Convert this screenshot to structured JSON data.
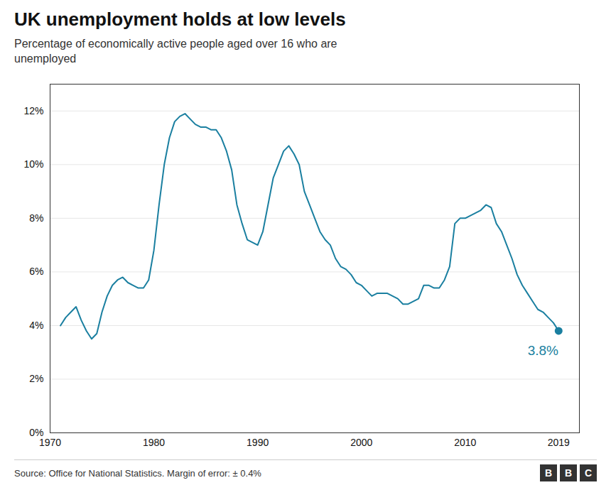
{
  "chart_data": {
    "type": "line",
    "title": "UK unemployment holds at low levels",
    "subtitle": "Percentage of economically active people aged over 16 who are\nunemployed",
    "source": "Source: Office for National Statistics. Margin of error: ± 0.4%",
    "logo": "BBC",
    "annotations": [
      {
        "text": "3.8%",
        "x": 2019,
        "y": 3.8
      }
    ],
    "color": "#1a7fa0",
    "grid": "y",
    "xlim": [
      1970,
      2021
    ],
    "xticks": [
      1970,
      1980,
      1990,
      2000,
      2010,
      2019
    ],
    "ylim": [
      0,
      13
    ],
    "yticks": [
      {
        "value": 0,
        "label": "0%"
      },
      {
        "value": 2,
        "label": "2%"
      },
      {
        "value": 4,
        "label": "4%"
      },
      {
        "value": 6,
        "label": "6%"
      },
      {
        "value": 8,
        "label": "8%"
      },
      {
        "value": 10,
        "label": "10%"
      },
      {
        "value": 12,
        "label": "12%"
      }
    ],
    "x": [
      1971,
      1971.5,
      1972,
      1972.5,
      1973,
      1973.5,
      1974,
      1974.5,
      1975,
      1975.5,
      1976,
      1976.5,
      1977,
      1977.5,
      1978,
      1978.5,
      1979,
      1979.5,
      1980,
      1980.5,
      1981,
      1981.5,
      1982,
      1982.5,
      1983,
      1983.5,
      1984,
      1984.5,
      1985,
      1985.5,
      1986,
      1986.5,
      1987,
      1987.5,
      1988,
      1988.5,
      1989,
      1989.5,
      1990,
      1990.5,
      1991,
      1991.5,
      1992,
      1992.5,
      1993,
      1993.5,
      1994,
      1994.5,
      1995,
      1995.5,
      1996,
      1996.5,
      1997,
      1997.5,
      1998,
      1998.5,
      1999,
      1999.5,
      2000,
      2000.5,
      2001,
      2001.5,
      2002,
      2002.5,
      2003,
      2003.5,
      2004,
      2004.5,
      2005,
      2005.5,
      2006,
      2006.5,
      2007,
      2007.5,
      2008,
      2008.5,
      2009,
      2009.5,
      2010,
      2010.5,
      2011,
      2011.5,
      2012,
      2012.5,
      2013,
      2013.5,
      2014,
      2014.5,
      2015,
      2015.5,
      2016,
      2016.5,
      2017,
      2017.5,
      2018,
      2018.5,
      2019
    ],
    "values": [
      4.0,
      4.3,
      4.5,
      4.7,
      4.2,
      3.8,
      3.5,
      3.7,
      4.5,
      5.1,
      5.5,
      5.7,
      5.8,
      5.6,
      5.5,
      5.4,
      5.4,
      5.7,
      6.8,
      8.5,
      10.0,
      11.0,
      11.6,
      11.8,
      11.9,
      11.7,
      11.5,
      11.4,
      11.4,
      11.3,
      11.3,
      11.0,
      10.5,
      9.8,
      8.5,
      7.8,
      7.2,
      7.1,
      7.0,
      7.5,
      8.5,
      9.5,
      10.0,
      10.5,
      10.7,
      10.4,
      10.0,
      9.0,
      8.5,
      8.0,
      7.5,
      7.2,
      7.0,
      6.5,
      6.2,
      6.1,
      5.9,
      5.6,
      5.5,
      5.3,
      5.1,
      5.2,
      5.2,
      5.2,
      5.1,
      5.0,
      4.8,
      4.8,
      4.9,
      5.0,
      5.5,
      5.5,
      5.4,
      5.4,
      5.7,
      6.2,
      7.8,
      8.0,
      8.0,
      8.1,
      8.2,
      8.3,
      8.5,
      8.4,
      7.8,
      7.5,
      7.0,
      6.5,
      5.9,
      5.5,
      5.2,
      4.9,
      4.6,
      4.5,
      4.3,
      4.1,
      3.8
    ]
  }
}
